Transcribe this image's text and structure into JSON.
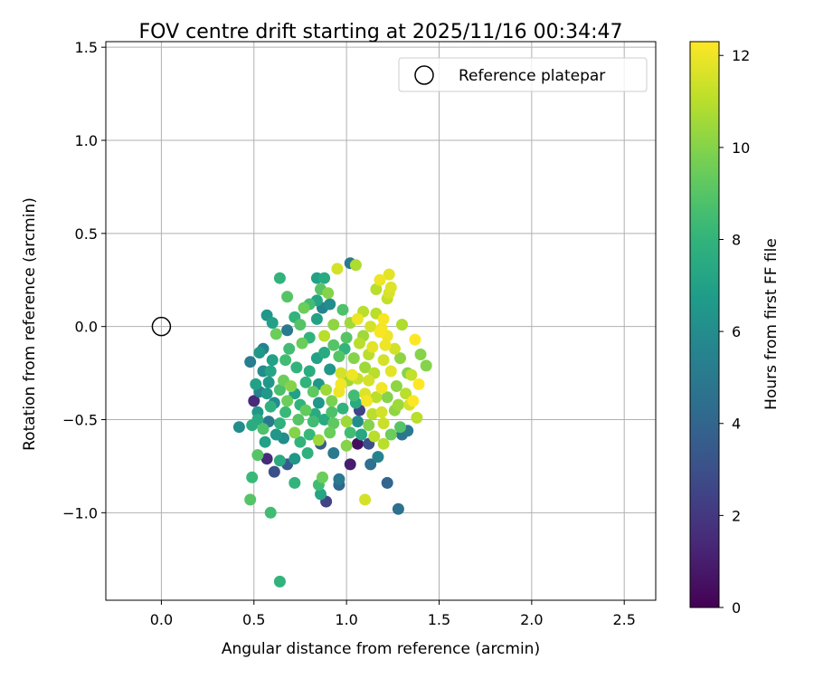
{
  "chart_data": {
    "type": "scatter",
    "title": "FOV centre drift starting at 2025/11/16 00:34:47",
    "xlabel": "Angular distance from reference (arcmin)",
    "ylabel": "Rotation from reference (arcmin)",
    "xlim": [
      -0.3,
      2.67
    ],
    "ylim": [
      -1.47,
      1.53
    ],
    "x_ticks": [
      0.0,
      0.5,
      1.0,
      1.5,
      2.0,
      2.5
    ],
    "x_tick_labels": [
      "0.0",
      "0.5",
      "1.0",
      "1.5",
      "2.0",
      "2.5"
    ],
    "y_ticks": [
      -1.0,
      -0.5,
      0.0,
      0.5,
      1.0,
      1.5
    ],
    "y_tick_labels": [
      "−1.0",
      "−0.5",
      "0.0",
      "0.5",
      "1.0",
      "1.5"
    ],
    "grid": true,
    "legend": {
      "position": "top-right",
      "entries": [
        "Reference platepar"
      ]
    },
    "reference_point": {
      "x": 0.0,
      "y": 0.0,
      "label": "Reference platepar",
      "marker": "open-circle"
    },
    "colorbar": {
      "label": "Hours from first FF file",
      "colormap": "viridis",
      "range": [
        0,
        12.3
      ],
      "ticks": [
        0,
        2,
        4,
        6,
        8,
        10,
        12
      ]
    },
    "series": [
      {
        "marker": "filled-circle",
        "color_by": "hours",
        "points": [
          [
            1.02,
            0.34,
            5.0
          ],
          [
            1.05,
            0.33,
            10.8
          ],
          [
            0.95,
            0.31,
            11.5
          ],
          [
            1.23,
            0.28,
            11.8
          ],
          [
            0.64,
            0.26,
            8.0
          ],
          [
            0.84,
            0.26,
            7.0
          ],
          [
            0.88,
            0.26,
            7.5
          ],
          [
            1.18,
            0.25,
            12.0
          ],
          [
            1.24,
            0.21,
            11.7
          ],
          [
            1.16,
            0.2,
            11.0
          ],
          [
            0.86,
            0.2,
            9.0
          ],
          [
            0.9,
            0.18,
            10.0
          ],
          [
            0.84,
            0.14,
            7.2
          ],
          [
            0.68,
            0.16,
            9.0
          ],
          [
            1.22,
            0.15,
            11.2
          ],
          [
            1.23,
            0.18,
            11.6
          ],
          [
            0.8,
            0.12,
            8.5
          ],
          [
            0.91,
            0.12,
            6.0
          ],
          [
            0.87,
            0.1,
            5.5
          ],
          [
            0.77,
            0.1,
            9.5
          ],
          [
            0.98,
            0.09,
            8.8
          ],
          [
            1.09,
            0.08,
            11.0
          ],
          [
            1.16,
            0.07,
            11.0
          ],
          [
            0.57,
            0.06,
            6.5
          ],
          [
            0.72,
            0.05,
            8.0
          ],
          [
            0.84,
            0.04,
            7.0
          ],
          [
            1.06,
            0.04,
            12.0
          ],
          [
            1.02,
            0.02,
            10.5
          ],
          [
            1.2,
            0.04,
            12.2
          ],
          [
            1.3,
            0.01,
            10.8
          ],
          [
            0.75,
            0.01,
            9.0
          ],
          [
            0.6,
            0.02,
            7.0
          ],
          [
            0.68,
            -0.02,
            5.0
          ],
          [
            0.93,
            0.01,
            10.2
          ],
          [
            1.13,
            0.0,
            11.5
          ],
          [
            1.19,
            -0.01,
            12.1
          ],
          [
            0.62,
            -0.04,
            9.5
          ],
          [
            0.8,
            -0.06,
            8.0
          ],
          [
            0.88,
            -0.05,
            11.0
          ],
          [
            1.0,
            -0.06,
            9.0
          ],
          [
            1.09,
            -0.05,
            10.5
          ],
          [
            1.18,
            -0.03,
            12.2
          ],
          [
            1.22,
            -0.05,
            12.0
          ],
          [
            1.37,
            -0.07,
            12.3
          ],
          [
            0.55,
            -0.12,
            5.5
          ],
          [
            0.53,
            -0.14,
            6.5
          ],
          [
            0.69,
            -0.12,
            8.5
          ],
          [
            0.76,
            -0.09,
            9.5
          ],
          [
            0.93,
            -0.1,
            9.0
          ],
          [
            0.99,
            -0.12,
            8.0
          ],
          [
            1.07,
            -0.09,
            11.0
          ],
          [
            1.14,
            -0.11,
            11.8
          ],
          [
            1.21,
            -0.1,
            12.0
          ],
          [
            1.26,
            -0.12,
            11.5
          ],
          [
            0.48,
            -0.19,
            5.2
          ],
          [
            0.6,
            -0.18,
            7.0
          ],
          [
            0.67,
            -0.18,
            8.5
          ],
          [
            0.84,
            -0.17,
            7.0
          ],
          [
            0.88,
            -0.14,
            7.5
          ],
          [
            0.96,
            -0.16,
            9.0
          ],
          [
            1.04,
            -0.17,
            10.0
          ],
          [
            1.12,
            -0.15,
            11.0
          ],
          [
            1.2,
            -0.18,
            11.5
          ],
          [
            1.29,
            -0.17,
            10.2
          ],
          [
            1.4,
            -0.15,
            10.0
          ],
          [
            1.43,
            -0.21,
            10.0
          ],
          [
            0.55,
            -0.24,
            6.0
          ],
          [
            0.59,
            -0.24,
            7.2
          ],
          [
            0.73,
            -0.22,
            8.0
          ],
          [
            0.8,
            -0.24,
            7.6
          ],
          [
            0.91,
            -0.23,
            6.5
          ],
          [
            0.97,
            -0.25,
            11.5
          ],
          [
            1.03,
            -0.26,
            12.0
          ],
          [
            1.1,
            -0.22,
            10.5
          ],
          [
            1.15,
            -0.25,
            11.0
          ],
          [
            1.24,
            -0.24,
            11.8
          ],
          [
            1.33,
            -0.25,
            10.0
          ],
          [
            1.35,
            -0.26,
            11.2
          ],
          [
            0.51,
            -0.31,
            7.0
          ],
          [
            0.58,
            -0.3,
            6.5
          ],
          [
            0.66,
            -0.29,
            9.5
          ],
          [
            0.7,
            -0.32,
            10.0
          ],
          [
            0.78,
            -0.3,
            8.0
          ],
          [
            0.85,
            -0.31,
            6.5
          ],
          [
            0.97,
            -0.31,
            12.1
          ],
          [
            1.01,
            -0.29,
            10.5
          ],
          [
            1.06,
            -0.28,
            11.3
          ],
          [
            1.12,
            -0.29,
            11.5
          ],
          [
            1.19,
            -0.33,
            12.1
          ],
          [
            1.27,
            -0.32,
            10.2
          ],
          [
            1.39,
            -0.31,
            12.3
          ],
          [
            0.53,
            -0.35,
            5.5
          ],
          [
            0.57,
            -0.36,
            6.6
          ],
          [
            0.64,
            -0.34,
            8.7
          ],
          [
            0.72,
            -0.36,
            7.0
          ],
          [
            0.82,
            -0.35,
            9.2
          ],
          [
            0.89,
            -0.34,
            10.5
          ],
          [
            0.96,
            -0.35,
            12.0
          ],
          [
            1.04,
            -0.37,
            8.5
          ],
          [
            1.1,
            -0.36,
            11.7
          ],
          [
            1.22,
            -0.38,
            10.0
          ],
          [
            1.32,
            -0.36,
            11.0
          ],
          [
            1.36,
            -0.4,
            12.3
          ],
          [
            0.5,
            -0.4,
            1.5
          ],
          [
            0.61,
            -0.41,
            6.0
          ],
          [
            0.68,
            -0.4,
            9.5
          ],
          [
            0.75,
            -0.42,
            8.0
          ],
          [
            0.85,
            -0.41,
            6.5
          ],
          [
            0.92,
            -0.4,
            9.8
          ],
          [
            1.05,
            -0.41,
            7.5
          ],
          [
            1.11,
            -0.4,
            12.1
          ],
          [
            1.16,
            -0.38,
            11.0
          ],
          [
            1.28,
            -0.42,
            10.5
          ],
          [
            1.34,
            -0.42,
            11.5
          ],
          [
            0.52,
            -0.46,
            6.5
          ],
          [
            0.59,
            -0.43,
            7.8
          ],
          [
            0.67,
            -0.46,
            8.3
          ],
          [
            0.78,
            -0.45,
            9.3
          ],
          [
            0.83,
            -0.47,
            7.5
          ],
          [
            0.92,
            -0.46,
            8.8
          ],
          [
            0.98,
            -0.44,
            8.0
          ],
          [
            1.07,
            -0.45,
            2.5
          ],
          [
            1.14,
            -0.47,
            11.0
          ],
          [
            1.19,
            -0.46,
            11.5
          ],
          [
            1.26,
            -0.45,
            10.2
          ],
          [
            1.38,
            -0.49,
            11.0
          ],
          [
            0.42,
            -0.54,
            6.0
          ],
          [
            0.52,
            -0.5,
            7.5
          ],
          [
            0.58,
            -0.51,
            5.0
          ],
          [
            0.64,
            -0.52,
            7.8
          ],
          [
            0.74,
            -0.5,
            9.0
          ],
          [
            0.82,
            -0.51,
            8.5
          ],
          [
            0.88,
            -0.5,
            7.5
          ],
          [
            0.93,
            -0.52,
            9.2
          ],
          [
            1.0,
            -0.51,
            10.5
          ],
          [
            1.06,
            -0.51,
            6.0
          ],
          [
            1.12,
            -0.53,
            10.0
          ],
          [
            1.2,
            -0.52,
            11.3
          ],
          [
            1.29,
            -0.54,
            9.0
          ],
          [
            1.33,
            -0.56,
            5.0
          ],
          [
            0.49,
            -0.53,
            7.6
          ],
          [
            0.55,
            -0.55,
            8.8
          ],
          [
            0.62,
            -0.58,
            6.5
          ],
          [
            0.72,
            -0.57,
            10.0
          ],
          [
            0.8,
            -0.58,
            8.2
          ],
          [
            0.91,
            -0.57,
            9.5
          ],
          [
            1.02,
            -0.57,
            8.5
          ],
          [
            1.08,
            -0.58,
            7.3
          ],
          [
            1.15,
            -0.59,
            11.0
          ],
          [
            1.24,
            -0.58,
            9.5
          ],
          [
            1.3,
            -0.58,
            4.8
          ],
          [
            0.56,
            -0.62,
            7.0
          ],
          [
            0.66,
            -0.6,
            6.0
          ],
          [
            0.75,
            -0.62,
            8.0
          ],
          [
            0.85,
            -0.61,
            10.5
          ],
          [
            0.86,
            -0.63,
            3.5
          ],
          [
            1.0,
            -0.64,
            10.0
          ],
          [
            1.06,
            -0.63,
            0.5
          ],
          [
            1.12,
            -0.63,
            3.0
          ],
          [
            1.2,
            -0.63,
            11.0
          ],
          [
            0.52,
            -0.69,
            9.0
          ],
          [
            0.57,
            -0.71,
            1.5
          ],
          [
            0.64,
            -0.72,
            7.5
          ],
          [
            0.68,
            -0.74,
            3.5
          ],
          [
            0.72,
            -0.71,
            6.5
          ],
          [
            0.79,
            -0.68,
            7.8
          ],
          [
            0.93,
            -0.68,
            5.0
          ],
          [
            1.02,
            -0.74,
            1.0
          ],
          [
            1.13,
            -0.74,
            4.5
          ],
          [
            1.17,
            -0.7,
            5.5
          ],
          [
            0.49,
            -0.81,
            8.3
          ],
          [
            0.61,
            -0.78,
            3.0
          ],
          [
            0.72,
            -0.84,
            8.0
          ],
          [
            0.87,
            -0.81,
            9.5
          ],
          [
            0.85,
            -0.85,
            8.5
          ],
          [
            0.96,
            -0.82,
            5.0
          ],
          [
            0.96,
            -0.85,
            4.0
          ],
          [
            1.22,
            -0.84,
            4.0
          ],
          [
            0.48,
            -0.93,
            9.0
          ],
          [
            0.86,
            -0.9,
            7.2
          ],
          [
            0.89,
            -0.94,
            2.5
          ],
          [
            1.1,
            -0.93,
            11.5
          ],
          [
            0.59,
            -1.0,
            8.5
          ],
          [
            1.28,
            -0.98,
            4.5
          ],
          [
            0.64,
            -1.37,
            8.0
          ]
        ]
      }
    ]
  }
}
